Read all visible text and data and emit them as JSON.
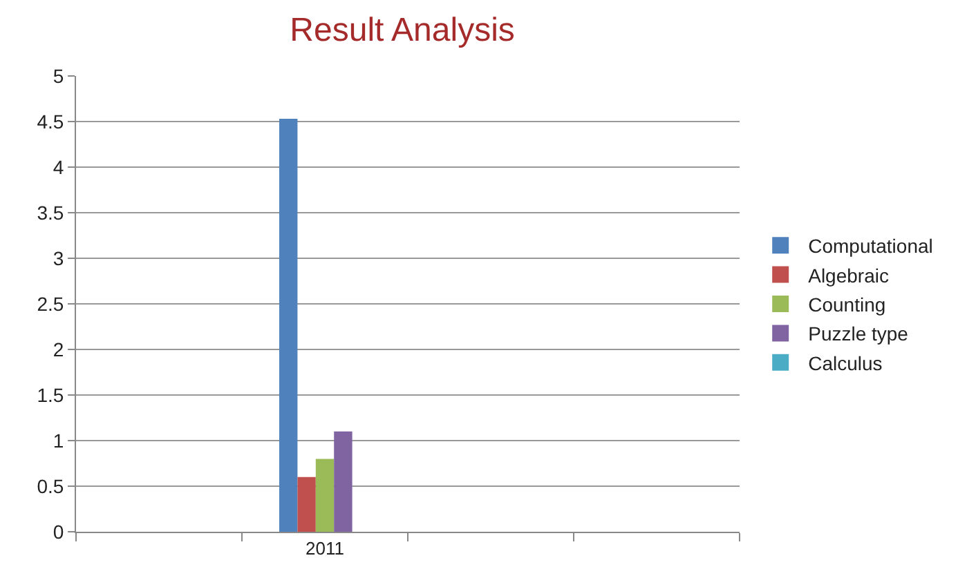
{
  "chart_data": {
    "type": "bar",
    "title": "Result Analysis",
    "categories": [
      null,
      "2011",
      null,
      null
    ],
    "series": [
      {
        "name": "Computational",
        "color": "#4f81bd",
        "values": [
          null,
          4.53,
          null,
          null
        ]
      },
      {
        "name": "Algebraic",
        "color": "#c0504d",
        "values": [
          null,
          0.6,
          null,
          null
        ]
      },
      {
        "name": "Counting",
        "color": "#9bbb59",
        "values": [
          null,
          0.8,
          null,
          null
        ]
      },
      {
        "name": "Puzzle type",
        "color": "#8064a2",
        "values": [
          null,
          1.1,
          null,
          null
        ]
      },
      {
        "name": "Calculus",
        "color": "#4bacc6",
        "values": [
          null,
          0,
          null,
          null
        ]
      }
    ],
    "ylim": [
      0,
      5
    ],
    "yticks": [
      0,
      0.5,
      1,
      1.5,
      2,
      2.5,
      3,
      3.5,
      4,
      4.5,
      5
    ],
    "grid": "y",
    "legend": "right"
  }
}
